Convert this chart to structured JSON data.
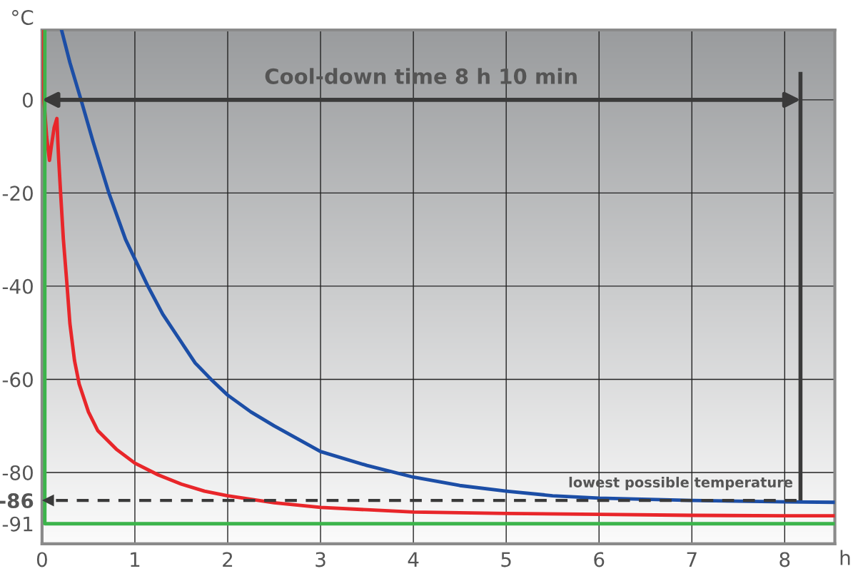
{
  "chart_data": {
    "type": "line",
    "ylabel": "°C",
    "xlabel": "h",
    "xlim": [
      0,
      8.54
    ],
    "xticks": [
      0,
      1,
      2,
      3,
      4,
      5,
      6,
      7,
      8
    ],
    "ylim": [
      -95.3,
      15
    ],
    "yticks": [
      0,
      -20,
      -40,
      -60,
      -80,
      -86,
      -91
    ],
    "grid": true,
    "line_style": "solid",
    "series": [
      {
        "color": "#e8262a",
        "x": [
          0,
          0.02,
          0.05,
          0.08,
          0.1,
          0.13,
          0.16,
          0.17,
          0.18,
          0.2,
          0.23,
          0.27,
          0.3,
          0.35,
          0.4,
          0.5,
          0.6,
          0.8,
          1,
          1.25,
          1.5,
          1.75,
          2,
          2.5,
          3,
          3.5,
          4,
          5,
          6,
          7,
          8,
          8.54
        ],
        "values": [
          15,
          0,
          -8,
          -13,
          -10,
          -6,
          -4,
          -9,
          -13,
          -20,
          -30,
          -40,
          -48,
          -56,
          -61,
          -67,
          -71,
          -75,
          -78,
          -80.5,
          -82.5,
          -84,
          -85,
          -86.5,
          -87.5,
          -88,
          -88.5,
          -88.8,
          -89,
          -89.2,
          -89.3,
          -89.3
        ]
      },
      {
        "color": "#1c4ea6",
        "x": [
          0.21,
          0.3,
          0.42,
          0.55,
          0.72,
          0.9,
          1.14,
          1.3,
          1.5,
          1.65,
          1.82,
          2,
          2.25,
          2.5,
          3,
          3.5,
          4,
          4.5,
          5,
          5.5,
          6,
          7,
          8,
          8.54
        ],
        "values": [
          15,
          8,
          0,
          -9,
          -20,
          -30,
          -40,
          -46,
          -52,
          -56.5,
          -60,
          -63.4,
          -67,
          -70,
          -75.5,
          -78.5,
          -81,
          -82.8,
          -84,
          -85,
          -85.5,
          -86,
          -86.3,
          -86.4
        ]
      },
      {
        "color": "#3cb44b",
        "x": [
          0.03,
          0.03,
          8.54
        ],
        "values": [
          15,
          -91,
          -91
        ]
      }
    ],
    "ref_lines": [
      {
        "axis": "y",
        "value": -86,
        "label": "lowest possible temperature",
        "color": "#3a3a3a",
        "line_style": "dashed"
      },
      {
        "axis": "x",
        "value": 8.17,
        "color": "#3a3a3a",
        "line_style": "solid"
      }
    ],
    "annotations": [
      "Cool-down time 8 h 10 min"
    ]
  }
}
